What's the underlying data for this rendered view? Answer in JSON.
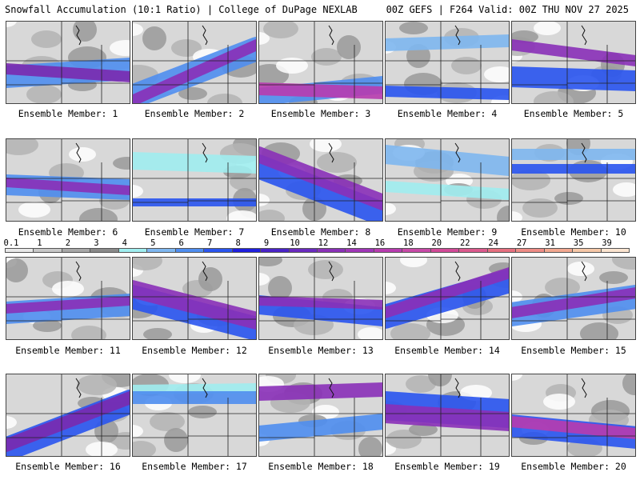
{
  "header": {
    "title_left": "Snowfall Accumulation (10:1 Ratio) | College of DuPage NEXLAB",
    "title_right": "00Z GEFS | F264 Valid: 00Z THU NOV 27 2025"
  },
  "caption_prefix": "Ensemble Member: ",
  "members": [
    {
      "label": "Ensemble Member: 1"
    },
    {
      "label": "Ensemble Member: 2"
    },
    {
      "label": "Ensemble Member: 3"
    },
    {
      "label": "Ensemble Member: 4"
    },
    {
      "label": "Ensemble Member: 5"
    },
    {
      "label": "Ensemble Member: 6"
    },
    {
      "label": "Ensemble Member: 7"
    },
    {
      "label": "Ensemble Member: 8"
    },
    {
      "label": "Ensemble Member: 9"
    },
    {
      "label": "Ensemble Member: 10"
    },
    {
      "label": "Ensemble Member: 11"
    },
    {
      "label": "Ensemble Member: 12"
    },
    {
      "label": "Ensemble Member: 13"
    },
    {
      "label": "Ensemble Member: 14"
    },
    {
      "label": "Ensemble Member: 15"
    },
    {
      "label": "Ensemble Member: 16"
    },
    {
      "label": "Ensemble Member: 17"
    },
    {
      "label": "Ensemble Member: 18"
    },
    {
      "label": "Ensemble Member: 19"
    },
    {
      "label": "Ensemble Member: 20"
    }
  ],
  "colorbar": {
    "labels": [
      "0.1",
      "1",
      "2",
      "3",
      "4",
      "5",
      "6",
      "7",
      "8",
      "9",
      "10",
      "12",
      "14",
      "16",
      "18",
      "20",
      "22",
      "24",
      "27",
      "31",
      "35",
      "39"
    ],
    "colors": [
      "#e8e8e8",
      "#c8c8c8",
      "#a8a8a8",
      "#8a8a8a",
      "#a0eef0",
      "#7fb7f0",
      "#4f8ef0",
      "#2a55f0",
      "#1f1fe0",
      "#4a23c8",
      "#6a2ac0",
      "#8a30b8",
      "#a036b8",
      "#b83cb0",
      "#c84aa8",
      "#d24a98",
      "#dc5a8e",
      "#e67080",
      "#ee8c86",
      "#f2a890",
      "#f6c8a8",
      "#fbe4d0"
    ]
  }
}
